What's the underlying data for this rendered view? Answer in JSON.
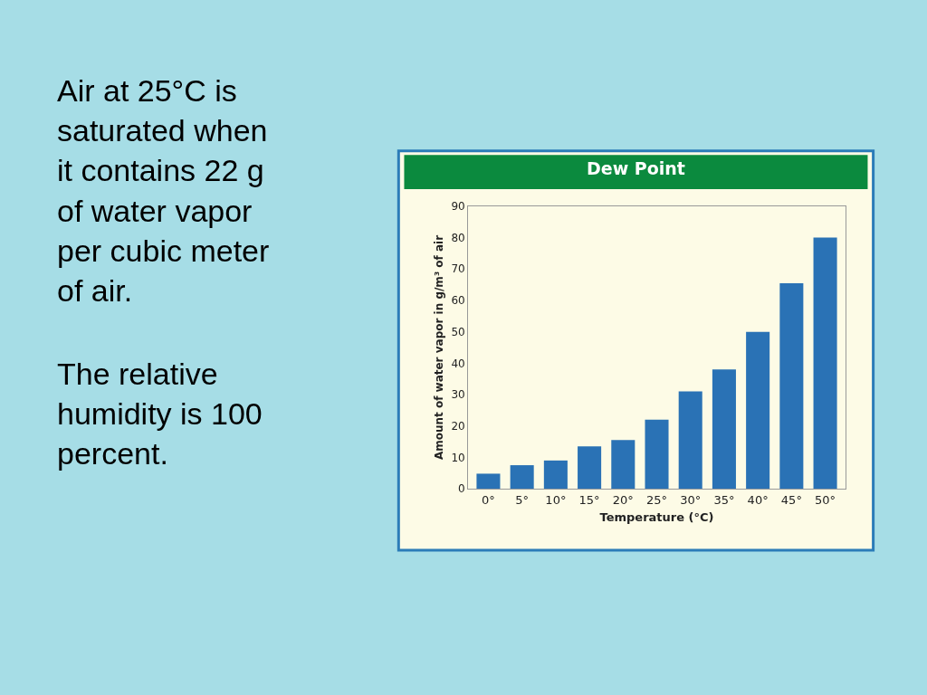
{
  "chart_data": {
    "type": "bar",
    "title": "Dew Point",
    "categories": [
      "0°",
      "5°",
      "10°",
      "15°",
      "20°",
      "25°",
      "30°",
      "35°",
      "40°",
      "45°",
      "50°"
    ],
    "values": [
      4.8,
      7.5,
      9,
      13.5,
      15.5,
      22,
      31,
      38,
      50,
      65.5,
      80
    ],
    "color": "#2a72b5",
    "xlabel": "Temperature (°C)",
    "ylabel": "Amount of water vapor in g/m³ of air",
    "ylim": [
      0,
      90
    ],
    "yticks": [
      0,
      10,
      20,
      30,
      40,
      50,
      60,
      70,
      80,
      90
    ],
    "grid": false,
    "annotations": [
      "Air at 25°C is\nsaturated when\nit contains 22 g\nof water vapor\nper cubic meter\nof air.",
      "The relative\nhumidity is 100\npercent."
    ]
  }
}
